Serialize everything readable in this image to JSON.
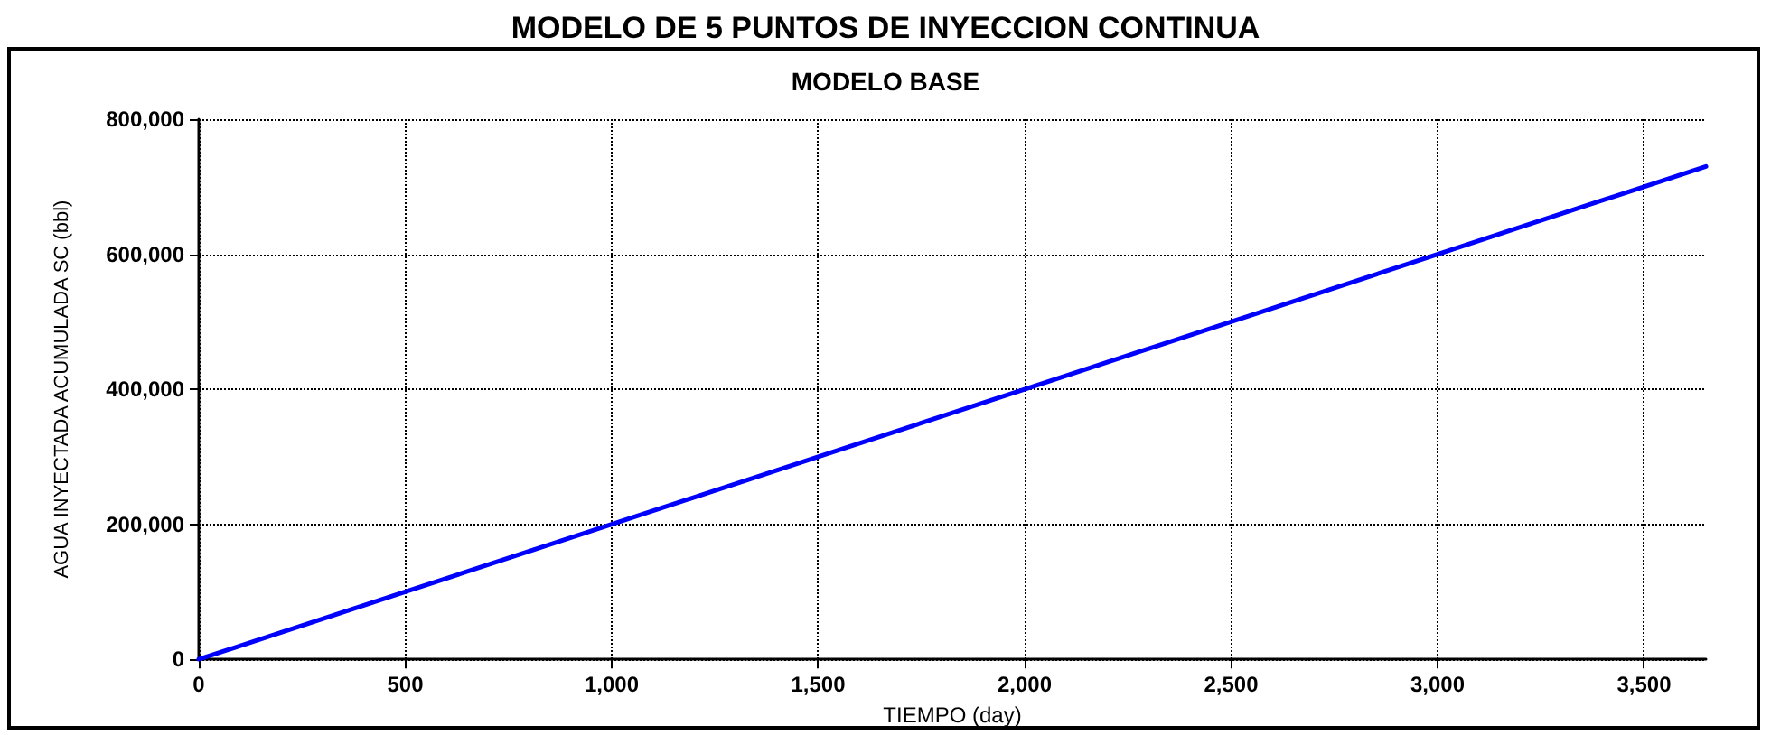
{
  "chart_data": {
    "type": "line",
    "title": "MODELO DE 5 PUNTOS DE INYECCION CONTINUA",
    "subtitle": "MODELO BASE",
    "xlabel": "TIEMPO (day)",
    "ylabel": "AGUA INYECTADA ACUMULADA SC (bbl)",
    "x": [
      0,
      500,
      1000,
      1500,
      2000,
      2500,
      3000,
      3500,
      3650
    ],
    "series": [
      {
        "color": "#0000ff",
        "values": [
          0,
          100000,
          200000,
          300000,
          400000,
          500000,
          600000,
          700000,
          730000
        ]
      }
    ],
    "xlim": [
      0,
      3650
    ],
    "xticks": [
      0,
      500,
      {
        "value": 1000,
        "label": "1,000"
      },
      {
        "value": 1500,
        "label": "1,500"
      },
      {
        "value": 2000,
        "label": "2,000"
      },
      {
        "value": 2500,
        "label": "2,500"
      },
      {
        "value": 3000,
        "label": "3,000"
      },
      {
        "value": 3500,
        "label": "3,500"
      }
    ],
    "ylim": [
      0,
      800000
    ],
    "yticks": [
      0,
      {
        "value": 200000,
        "label": "200,000"
      },
      {
        "value": 400000,
        "label": "400,000"
      },
      {
        "value": 600000,
        "label": "600,000"
      },
      {
        "value": 800000,
        "label": "800,000"
      }
    ],
    "grid": true,
    "marker": "none",
    "line_style": "solid"
  }
}
